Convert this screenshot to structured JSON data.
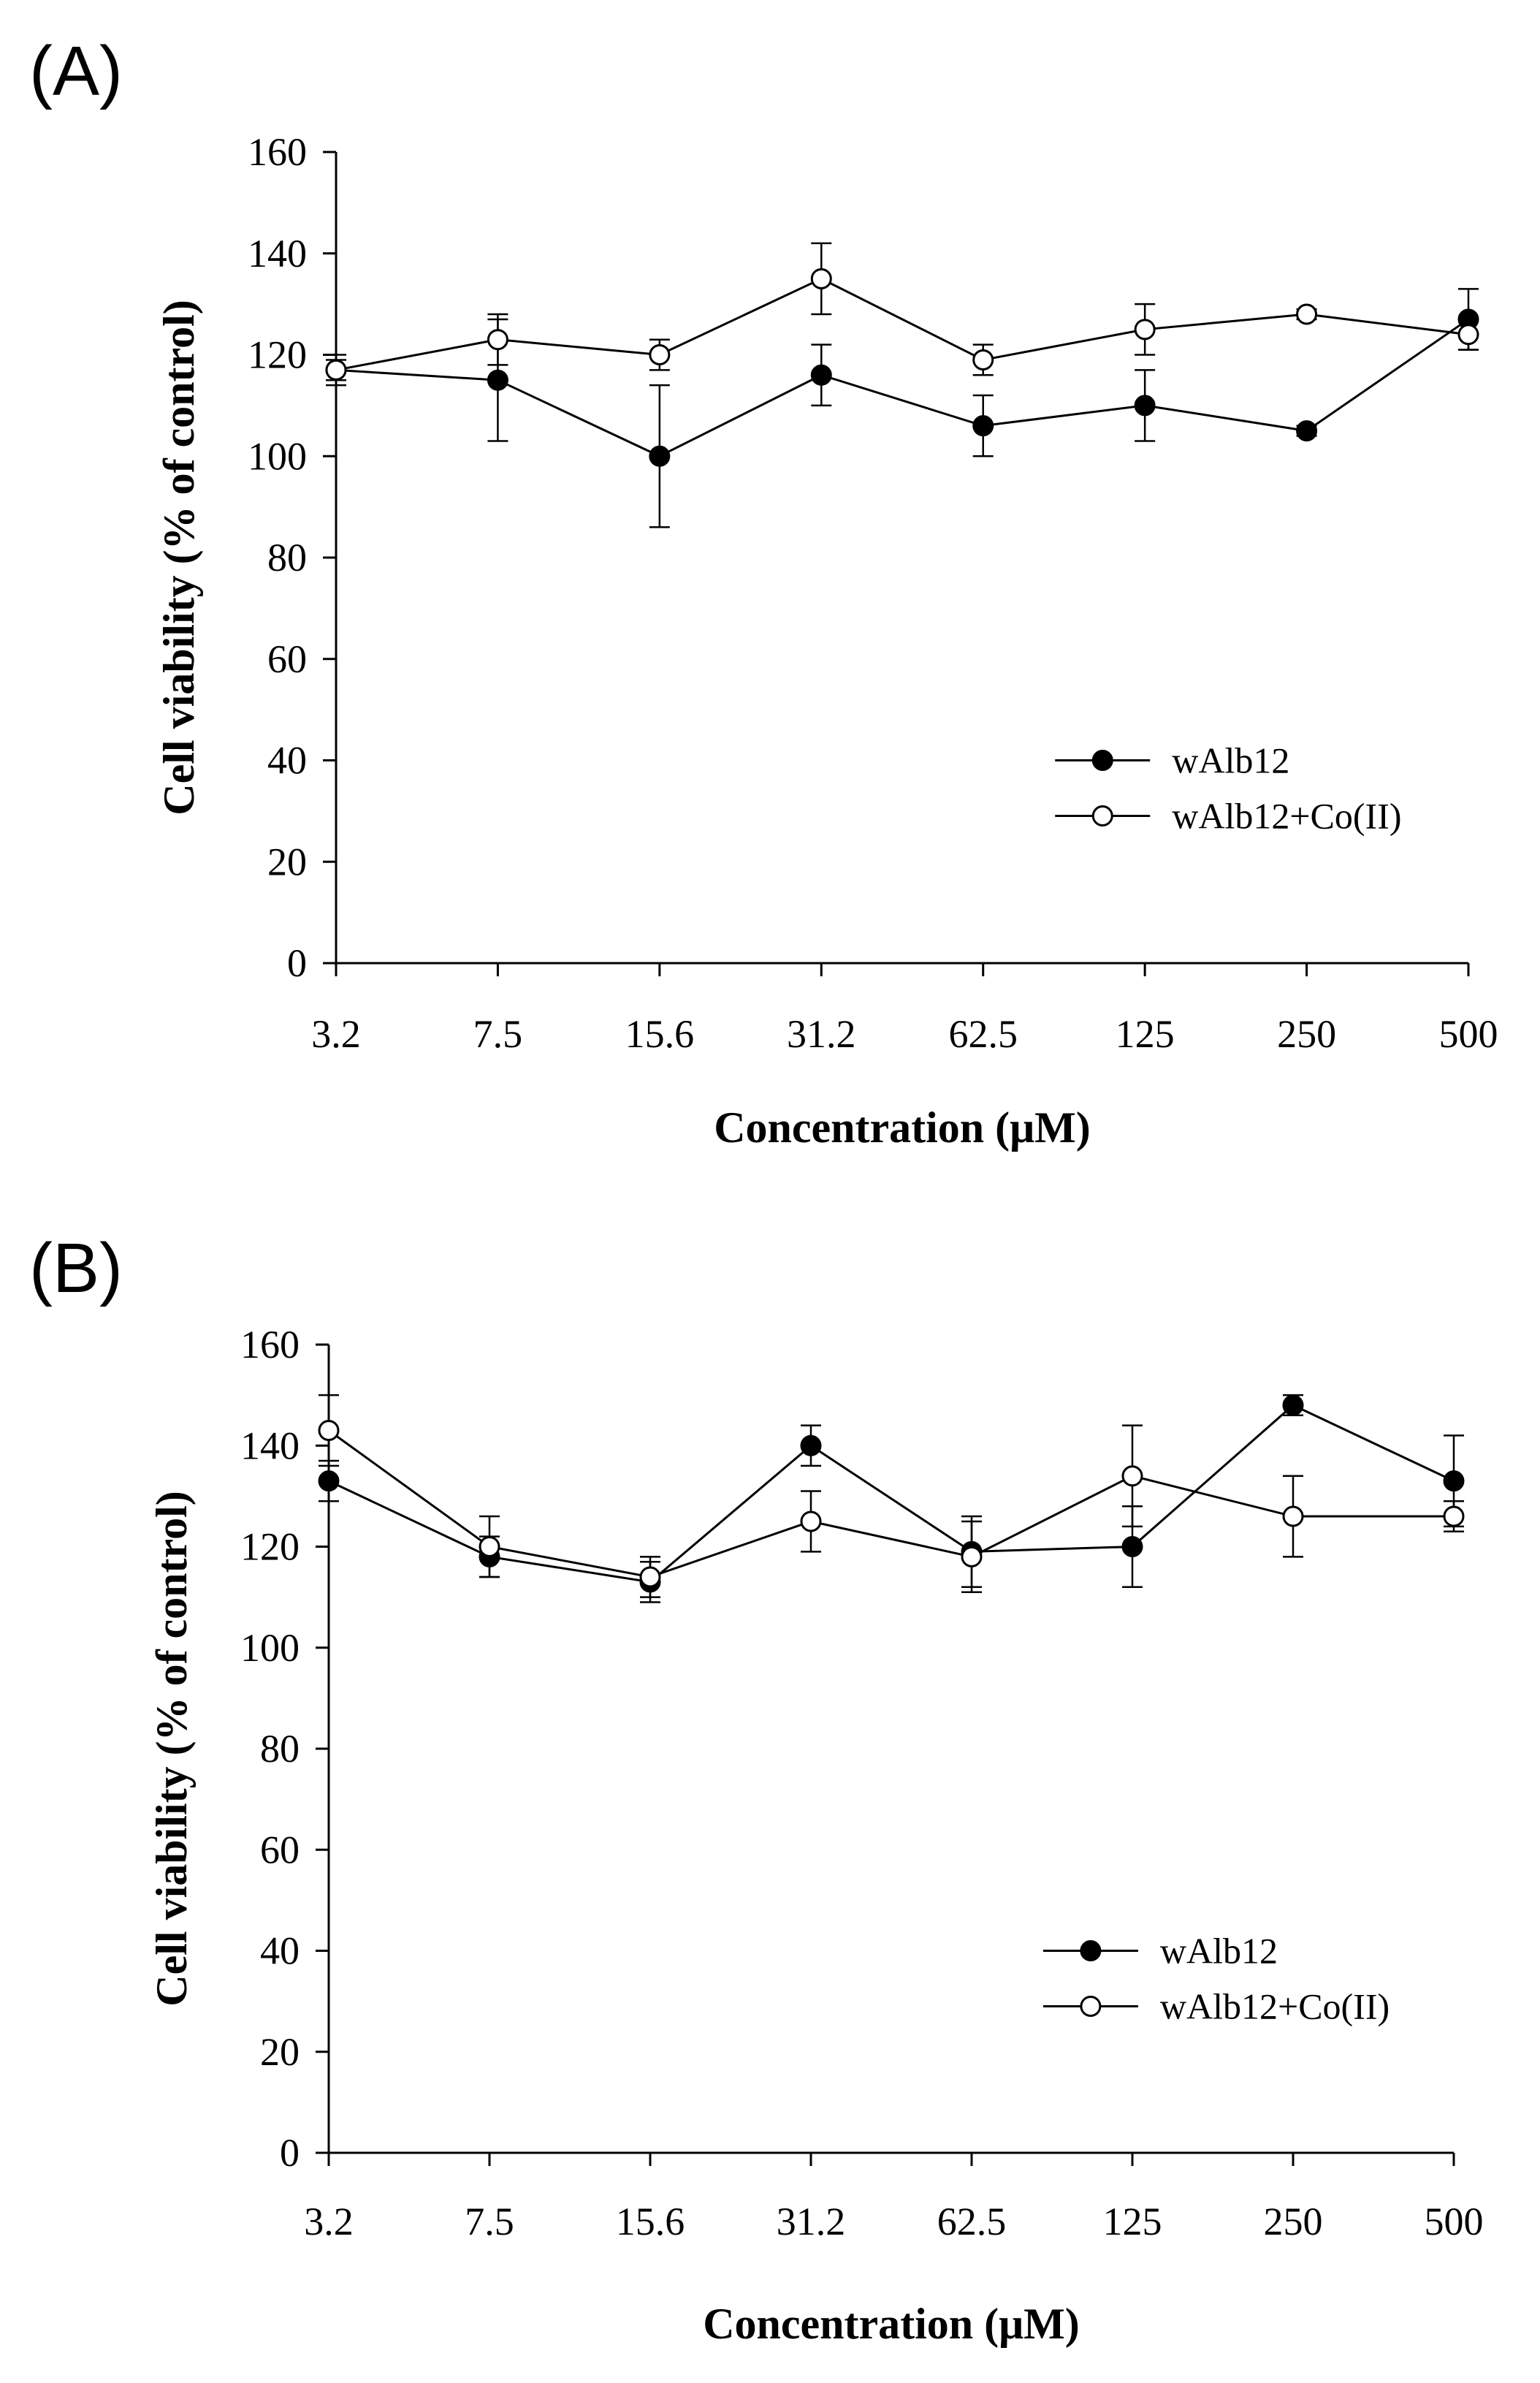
{
  "chart_data": [
    {
      "type": "line",
      "panel_label": "(A)",
      "categories": [
        "3.2",
        "7.5",
        "15.6",
        "31.2",
        "62.5",
        "125",
        "250",
        "500"
      ],
      "xlabel": "Concentration (μM)",
      "ylabel": "Cell viability (% of control)",
      "ylim": [
        0,
        160
      ],
      "yticks": [
        "0",
        "20",
        "40",
        "60",
        "80",
        "100",
        "120",
        "140",
        "160"
      ],
      "grid": false,
      "legend_position": "lower-right",
      "series": [
        {
          "name": "wAlb12",
          "marker": "filled-circle",
          "values": [
            117,
            115,
            100,
            116,
            106,
            110,
            105,
            127
          ],
          "errors": [
            3,
            12,
            14,
            6,
            6,
            7,
            1,
            6
          ]
        },
        {
          "name": "wAlb12+Co(II)",
          "marker": "open-circle",
          "values": [
            117,
            123,
            120,
            135,
            119,
            125,
            128,
            124
          ],
          "errors": [
            2,
            5,
            3,
            7,
            3,
            5,
            1,
            3
          ]
        }
      ]
    },
    {
      "type": "line",
      "panel_label": "(B)",
      "categories": [
        "3.2",
        "7.5",
        "15.6",
        "31.2",
        "62.5",
        "125",
        "250",
        "500"
      ],
      "xlabel": "Concentration (μM)",
      "ylabel": "Cell viability (% of control)",
      "ylim": [
        0,
        160
      ],
      "yticks": [
        "0",
        "20",
        "40",
        "60",
        "80",
        "100",
        "120",
        "140",
        "160"
      ],
      "grid": false,
      "legend_position": "lower-right",
      "series": [
        {
          "name": "wAlb12",
          "marker": "filled-circle",
          "values": [
            133,
            118,
            113,
            140,
            119,
            120,
            148,
            133
          ],
          "errors": [
            4,
            4,
            4,
            4,
            7,
            8,
            2,
            9
          ]
        },
        {
          "name": "wAlb12+Co(II)",
          "marker": "open-circle",
          "values": [
            143,
            120,
            114,
            125,
            118,
            134,
            126,
            126
          ],
          "errors": [
            7,
            6,
            4,
            6,
            7,
            10,
            8,
            3
          ]
        }
      ]
    }
  ]
}
